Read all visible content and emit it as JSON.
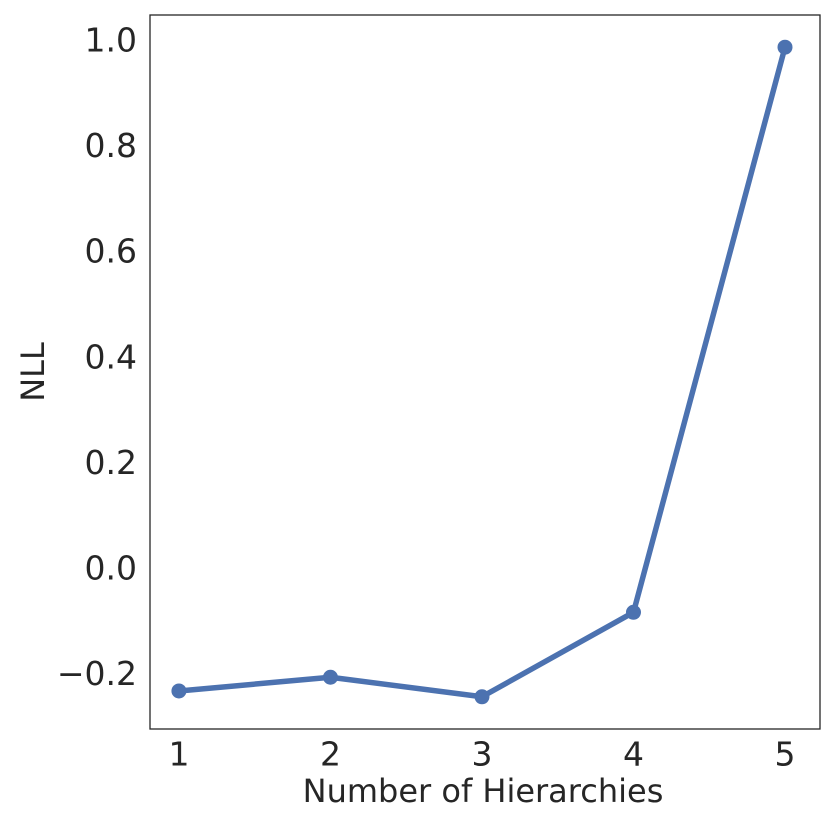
{
  "chart_data": {
    "type": "line",
    "x_label": "Number of Hierarchies",
    "y_label": "NLL",
    "x": [
      1,
      2,
      3,
      4,
      5
    ],
    "series": [
      {
        "color": "#4c72b0",
        "values": [
          -0.229,
          -0.203,
          -0.24,
          -0.08,
          0.99
        ]
      }
    ],
    "xlim": [
      0.809,
      5.231
    ],
    "ylim": [
      -0.301,
      1.051
    ],
    "xticks": [
      1,
      2,
      3,
      4,
      5
    ],
    "yticks": [
      {
        "value": -0.2,
        "label": "−0.2"
      },
      {
        "value": 0.0,
        "label": "0.0"
      },
      0.2,
      0.4,
      0.6,
      0.8,
      {
        "value": 1.0,
        "label": "1.0"
      }
    ],
    "grid": false
  }
}
